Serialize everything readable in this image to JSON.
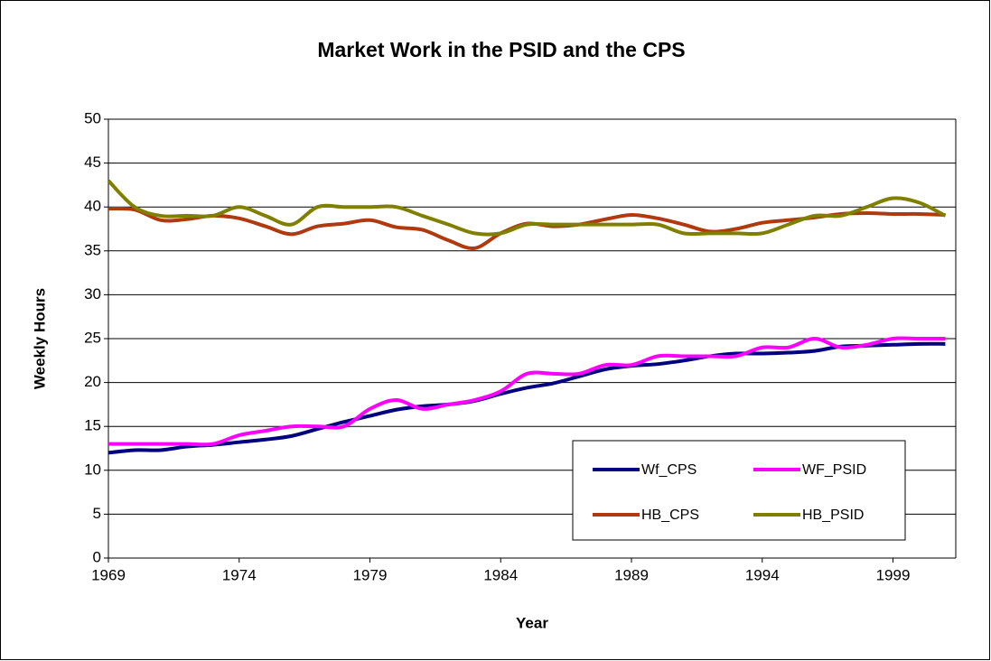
{
  "chart_data": {
    "type": "line",
    "title": "Market Work in the PSID and the CPS",
    "xlabel": "Year",
    "ylabel": "Weekly Hours",
    "x": [
      1969,
      1970,
      1971,
      1972,
      1973,
      1974,
      1975,
      1976,
      1977,
      1978,
      1979,
      1980,
      1981,
      1982,
      1983,
      1984,
      1985,
      1986,
      1987,
      1988,
      1989,
      1990,
      1991,
      1992,
      1993,
      1994,
      1995,
      1996,
      1997,
      1998,
      1999,
      2000,
      2001
    ],
    "series": [
      {
        "name": "Wf_CPS",
        "color": "#000080",
        "values": [
          12,
          12.3,
          12.3,
          12.7,
          12.9,
          13.2,
          13.5,
          13.9,
          14.7,
          15.5,
          16.2,
          16.9,
          17.3,
          17.5,
          17.9,
          18.7,
          19.4,
          19.9,
          20.7,
          21.5,
          21.9,
          22.1,
          22.5,
          23,
          23.3,
          23.3,
          23.4,
          23.6,
          24.1,
          24.2,
          24.3,
          24.4,
          24.4
        ]
      },
      {
        "name": "WF_PSID",
        "color": "#ff00ff",
        "values": [
          13,
          13,
          13,
          13,
          13,
          14,
          14.5,
          15,
          15,
          15,
          17,
          18,
          17,
          17.5,
          18,
          19,
          21,
          21,
          21,
          22,
          22,
          23,
          23,
          23,
          23,
          24,
          24,
          25,
          24,
          24.3,
          25,
          25,
          25
        ]
      },
      {
        "name": "HB_CPS",
        "color": "#b03a0e",
        "values": [
          39.8,
          39.7,
          38.5,
          38.6,
          39,
          38.7,
          37.8,
          36.9,
          37.8,
          38.1,
          38.5,
          37.7,
          37.4,
          36.2,
          35.3,
          37,
          38.1,
          37.8,
          38,
          38.6,
          39.1,
          38.7,
          38,
          37.2,
          37.5,
          38.2,
          38.5,
          38.8,
          39.2,
          39.3,
          39.2,
          39.2,
          39.1
        ]
      },
      {
        "name": "HB_PSID",
        "color": "#808000",
        "values": [
          43,
          40,
          39,
          39,
          39,
          40,
          39,
          38,
          40,
          40,
          40,
          40,
          39,
          38,
          37,
          37,
          38,
          38,
          38,
          38,
          38,
          38,
          37,
          37,
          37,
          37,
          38,
          39,
          39,
          40,
          41,
          40.5,
          39
        ]
      }
    ],
    "xlim": [
      1969,
      2001.4
    ],
    "xticks": [
      1969,
      1974,
      1979,
      1984,
      1989,
      1994,
      1999
    ],
    "ylim": [
      0,
      50
    ],
    "yticks": [
      0,
      5,
      10,
      15,
      20,
      25,
      30,
      35,
      40,
      45,
      50
    ],
    "grid": true,
    "legend": "lower right"
  }
}
